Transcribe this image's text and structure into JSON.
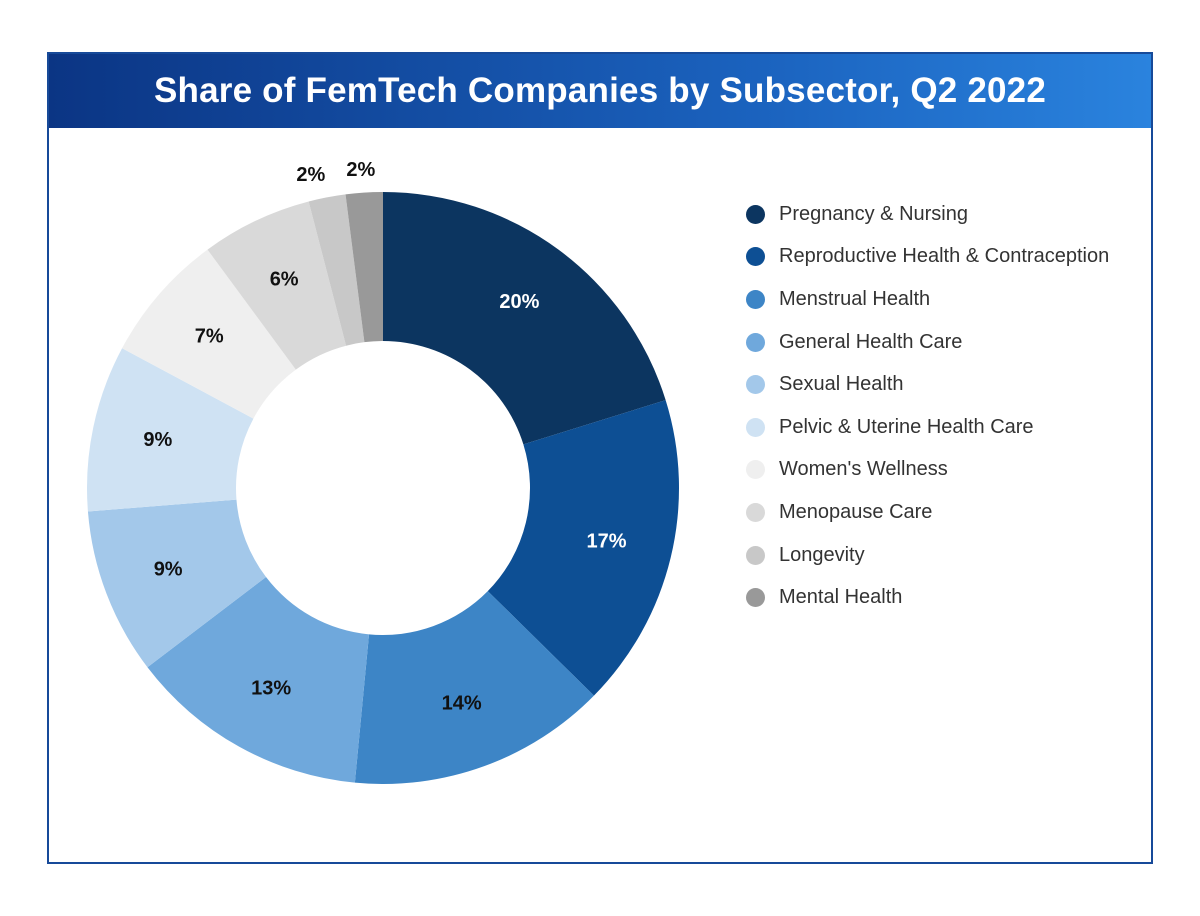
{
  "chart_data": {
    "type": "pie",
    "title": "Share of FemTech Companies by Subsector, Q2 2022",
    "categories": [
      "Pregnancy & Nursing",
      "Reproductive Health & Contraception",
      "Menstrual Health",
      "General Health Care",
      "Sexual Health",
      "Pelvic & Uterine Health Care",
      "Women's Wellness",
      "Menopause Care",
      "Longevity",
      "Mental Health"
    ],
    "values": [
      20,
      17,
      14,
      13,
      9,
      9,
      7,
      6,
      2,
      2
    ],
    "value_labels": [
      "20%",
      "17%",
      "14%",
      "13%",
      "9%",
      "9%",
      "7%",
      "6%",
      "2%",
      "2%"
    ],
    "colors": [
      "#0c3560",
      "#0d4f94",
      "#3d85c6",
      "#6fa8dc",
      "#a3c8ea",
      "#cfe2f3",
      "#efefef",
      "#d9d9d9",
      "#c8c8c8",
      "#999999"
    ],
    "label_colors": [
      "#ffffff",
      "#ffffff",
      "#111111",
      "#111111",
      "#111111",
      "#111111",
      "#111111",
      "#111111",
      "#111111",
      "#111111"
    ],
    "legend_position": "right",
    "donut": true
  }
}
